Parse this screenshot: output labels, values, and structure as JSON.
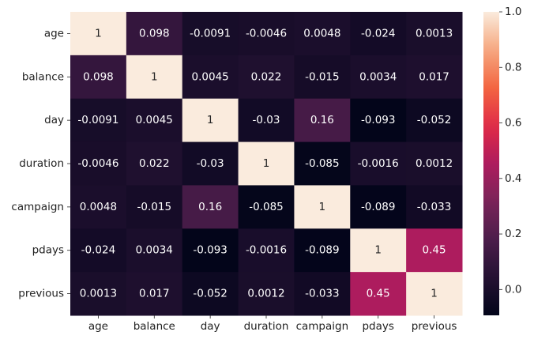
{
  "chart_data": {
    "type": "heatmap",
    "title": "",
    "xlabel": "",
    "ylabel": "",
    "x_labels": [
      "age",
      "balance",
      "day",
      "duration",
      "campaign",
      "pdays",
      "previous"
    ],
    "y_labels": [
      "age",
      "balance",
      "day",
      "duration",
      "campaign",
      "pdays",
      "previous"
    ],
    "values": [
      [
        1,
        0.098,
        -0.0091,
        -0.0046,
        0.0048,
        -0.024,
        0.0013
      ],
      [
        0.098,
        1,
        0.0045,
        0.022,
        -0.015,
        0.0034,
        0.017
      ],
      [
        -0.0091,
        0.0045,
        1,
        -0.03,
        0.16,
        -0.093,
        -0.052
      ],
      [
        -0.0046,
        0.022,
        -0.03,
        1,
        -0.085,
        -0.0016,
        0.0012
      ],
      [
        0.0048,
        -0.015,
        0.16,
        -0.085,
        1,
        -0.089,
        -0.033
      ],
      [
        -0.024,
        0.0034,
        -0.093,
        -0.0016,
        -0.089,
        1,
        0.45
      ],
      [
        0.0013,
        0.017,
        -0.052,
        0.0012,
        -0.033,
        0.45,
        1
      ]
    ],
    "annotations": [
      [
        "1",
        "0.098",
        "-0.0091",
        "-0.0046",
        "0.0048",
        "-0.024",
        "0.0013"
      ],
      [
        "0.098",
        "1",
        "0.0045",
        "0.022",
        "-0.015",
        "0.0034",
        "0.017"
      ],
      [
        "-0.0091",
        "0.0045",
        "1",
        "-0.03",
        "0.16",
        "-0.093",
        "-0.052"
      ],
      [
        "-0.0046",
        "0.022",
        "-0.03",
        "1",
        "-0.085",
        "-0.0016",
        "0.0012"
      ],
      [
        "0.0048",
        "-0.015",
        "0.16",
        "-0.085",
        "1",
        "-0.089",
        "-0.033"
      ],
      [
        "-0.024",
        "0.0034",
        "-0.093",
        "-0.0016",
        "-0.089",
        "1",
        "0.45"
      ],
      [
        "0.0013",
        "0.017",
        "-0.052",
        "0.0012",
        "-0.033",
        "0.45",
        "1"
      ]
    ],
    "colorbar": {
      "min": -0.093,
      "max": 1,
      "ticks": [
        0,
        0.2,
        0.4,
        0.6,
        0.8,
        1.0
      ],
      "tick_labels": [
        "0.0",
        "0.2",
        "0.4",
        "0.6",
        "0.8",
        "1.0"
      ],
      "colormap": "rocket"
    },
    "grid": false,
    "legend": "colorbar-right"
  }
}
